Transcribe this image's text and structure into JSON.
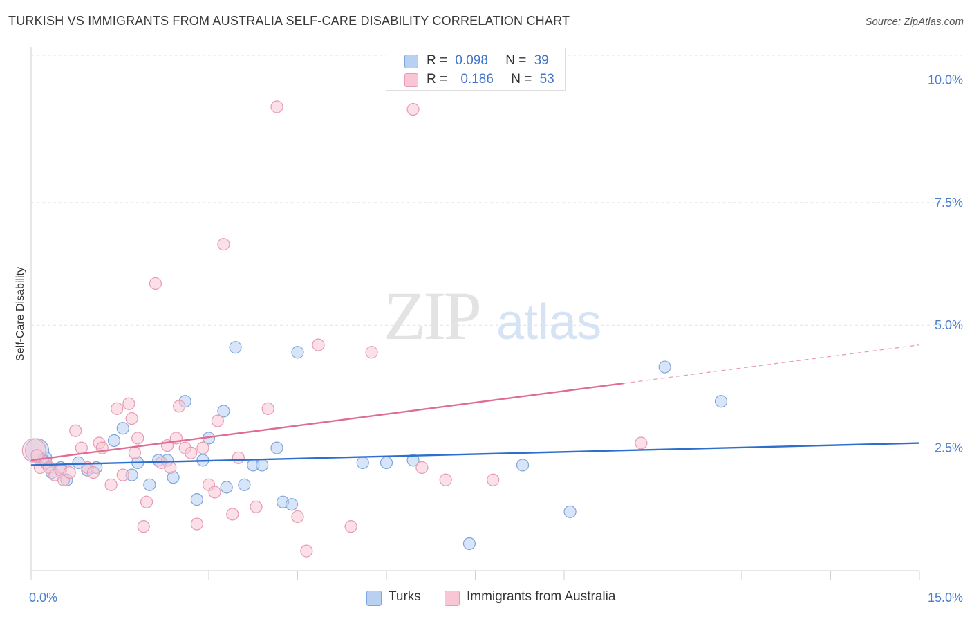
{
  "header": {
    "title": "TURKISH VS IMMIGRANTS FROM AUSTRALIA SELF-CARE DISABILITY CORRELATION CHART",
    "source": "Source: ZipAtlas.com"
  },
  "watermark": {
    "zip": "ZIP",
    "atlas": "atlas"
  },
  "legend": {
    "row1": {
      "r_label": "R =",
      "r_value": "0.098",
      "n_label": "N =",
      "n_value": "39"
    },
    "row2": {
      "r_label": "R =",
      "r_value": "0.186",
      "n_label": "N =",
      "n_value": "53"
    }
  },
  "colors": {
    "turks_fill": "#b8d0f2",
    "turks_stroke": "#7ea6dc",
    "turks_line": "#2d6fcc",
    "aus_fill": "#f8c6d4",
    "aus_stroke": "#e89ab3",
    "aus_line": "#e06b95",
    "grid": "#e2e2e2",
    "axis_label": "#4a7ecf"
  },
  "chart_data": {
    "type": "scatter",
    "xlabel": "",
    "ylabel": "Self-Care Disability",
    "xlim": [
      0,
      15
    ],
    "ylim": [
      0,
      10.5
    ],
    "x_tick_labels": [
      "0.0%",
      "15.0%"
    ],
    "y_ticks": [
      2.5,
      5.0,
      7.5,
      10.0
    ],
    "y_tick_labels": [
      "2.5%",
      "5.0%",
      "7.5%",
      "10.0%"
    ],
    "grid": true,
    "legend_position": "top-center",
    "series": [
      {
        "name": "Turks",
        "r": 0.098,
        "n": 39,
        "trend": {
          "x": [
            0,
            15
          ],
          "y": [
            2.15,
            2.6
          ],
          "solid_to": 15
        },
        "points": [
          {
            "x": 0.1,
            "y": 2.45,
            "big": true
          },
          {
            "x": 0.25,
            "y": 2.3
          },
          {
            "x": 0.35,
            "y": 2.0
          },
          {
            "x": 0.5,
            "y": 2.1
          },
          {
            "x": 0.6,
            "y": 1.85
          },
          {
            "x": 0.95,
            "y": 2.05
          },
          {
            "x": 1.1,
            "y": 2.1
          },
          {
            "x": 0.8,
            "y": 2.2
          },
          {
            "x": 1.4,
            "y": 2.65
          },
          {
            "x": 1.55,
            "y": 2.9
          },
          {
            "x": 1.7,
            "y": 1.95
          },
          {
            "x": 1.8,
            "y": 2.2
          },
          {
            "x": 2.0,
            "y": 1.75
          },
          {
            "x": 2.15,
            "y": 2.25
          },
          {
            "x": 2.3,
            "y": 2.25
          },
          {
            "x": 2.4,
            "y": 1.9
          },
          {
            "x": 2.6,
            "y": 3.45
          },
          {
            "x": 2.8,
            "y": 1.45
          },
          {
            "x": 2.9,
            "y": 2.25
          },
          {
            "x": 3.0,
            "y": 2.7
          },
          {
            "x": 3.25,
            "y": 3.25
          },
          {
            "x": 3.3,
            "y": 1.7
          },
          {
            "x": 3.45,
            "y": 4.55
          },
          {
            "x": 3.6,
            "y": 1.75
          },
          {
            "x": 3.75,
            "y": 2.15
          },
          {
            "x": 3.9,
            "y": 2.15
          },
          {
            "x": 4.15,
            "y": 2.5
          },
          {
            "x": 4.25,
            "y": 1.4
          },
          {
            "x": 4.4,
            "y": 1.35
          },
          {
            "x": 4.5,
            "y": 4.45
          },
          {
            "x": 5.6,
            "y": 2.2
          },
          {
            "x": 6.0,
            "y": 2.2
          },
          {
            "x": 6.45,
            "y": 2.25
          },
          {
            "x": 7.4,
            "y": 0.55
          },
          {
            "x": 8.3,
            "y": 2.15
          },
          {
            "x": 9.1,
            "y": 1.2
          },
          {
            "x": 10.7,
            "y": 4.15
          },
          {
            "x": 11.65,
            "y": 3.45
          },
          {
            "x": 0.2,
            "y": 2.25
          }
        ]
      },
      {
        "name": "Immigrants from Australia",
        "r": 0.186,
        "n": 53,
        "trend": {
          "x": [
            0,
            15
          ],
          "y": [
            2.25,
            4.6
          ],
          "solid_to": 10
        },
        "points": [
          {
            "x": 0.05,
            "y": 2.45,
            "big": true
          },
          {
            "x": 0.15,
            "y": 2.1
          },
          {
            "x": 0.25,
            "y": 2.2
          },
          {
            "x": 0.3,
            "y": 2.1
          },
          {
            "x": 0.4,
            "y": 1.95
          },
          {
            "x": 0.5,
            "y": 2.05
          },
          {
            "x": 0.55,
            "y": 1.85
          },
          {
            "x": 0.65,
            "y": 2.0
          },
          {
            "x": 0.75,
            "y": 2.85
          },
          {
            "x": 0.85,
            "y": 2.5
          },
          {
            "x": 0.95,
            "y": 2.1
          },
          {
            "x": 1.05,
            "y": 2.0
          },
          {
            "x": 1.15,
            "y": 2.6
          },
          {
            "x": 1.2,
            "y": 2.5
          },
          {
            "x": 1.35,
            "y": 1.75
          },
          {
            "x": 1.45,
            "y": 3.3
          },
          {
            "x": 1.55,
            "y": 1.95
          },
          {
            "x": 1.65,
            "y": 3.4
          },
          {
            "x": 1.7,
            "y": 3.1
          },
          {
            "x": 1.75,
            "y": 2.4
          },
          {
            "x": 1.8,
            "y": 2.7
          },
          {
            "x": 1.9,
            "y": 0.9
          },
          {
            "x": 1.95,
            "y": 1.4
          },
          {
            "x": 2.1,
            "y": 5.85
          },
          {
            "x": 2.2,
            "y": 2.2
          },
          {
            "x": 2.3,
            "y": 2.55
          },
          {
            "x": 2.35,
            "y": 2.1
          },
          {
            "x": 2.45,
            "y": 2.7
          },
          {
            "x": 2.5,
            "y": 3.35
          },
          {
            "x": 2.6,
            "y": 2.5
          },
          {
            "x": 2.7,
            "y": 2.4
          },
          {
            "x": 2.8,
            "y": 0.95
          },
          {
            "x": 2.9,
            "y": 2.5
          },
          {
            "x": 3.0,
            "y": 1.75
          },
          {
            "x": 3.1,
            "y": 1.6
          },
          {
            "x": 3.15,
            "y": 3.05
          },
          {
            "x": 3.25,
            "y": 6.65
          },
          {
            "x": 3.4,
            "y": 1.15
          },
          {
            "x": 3.5,
            "y": 2.3
          },
          {
            "x": 3.8,
            "y": 1.3
          },
          {
            "x": 4.0,
            "y": 3.3
          },
          {
            "x": 4.15,
            "y": 9.45
          },
          {
            "x": 4.5,
            "y": 1.1
          },
          {
            "x": 4.65,
            "y": 0.4
          },
          {
            "x": 4.85,
            "y": 4.6
          },
          {
            "x": 5.4,
            "y": 0.9
          },
          {
            "x": 5.75,
            "y": 4.45
          },
          {
            "x": 6.45,
            "y": 9.4
          },
          {
            "x": 6.6,
            "y": 2.1
          },
          {
            "x": 7.0,
            "y": 1.85
          },
          {
            "x": 7.8,
            "y": 1.85
          },
          {
            "x": 10.3,
            "y": 2.6
          },
          {
            "x": 0.1,
            "y": 2.35
          }
        ]
      }
    ]
  }
}
